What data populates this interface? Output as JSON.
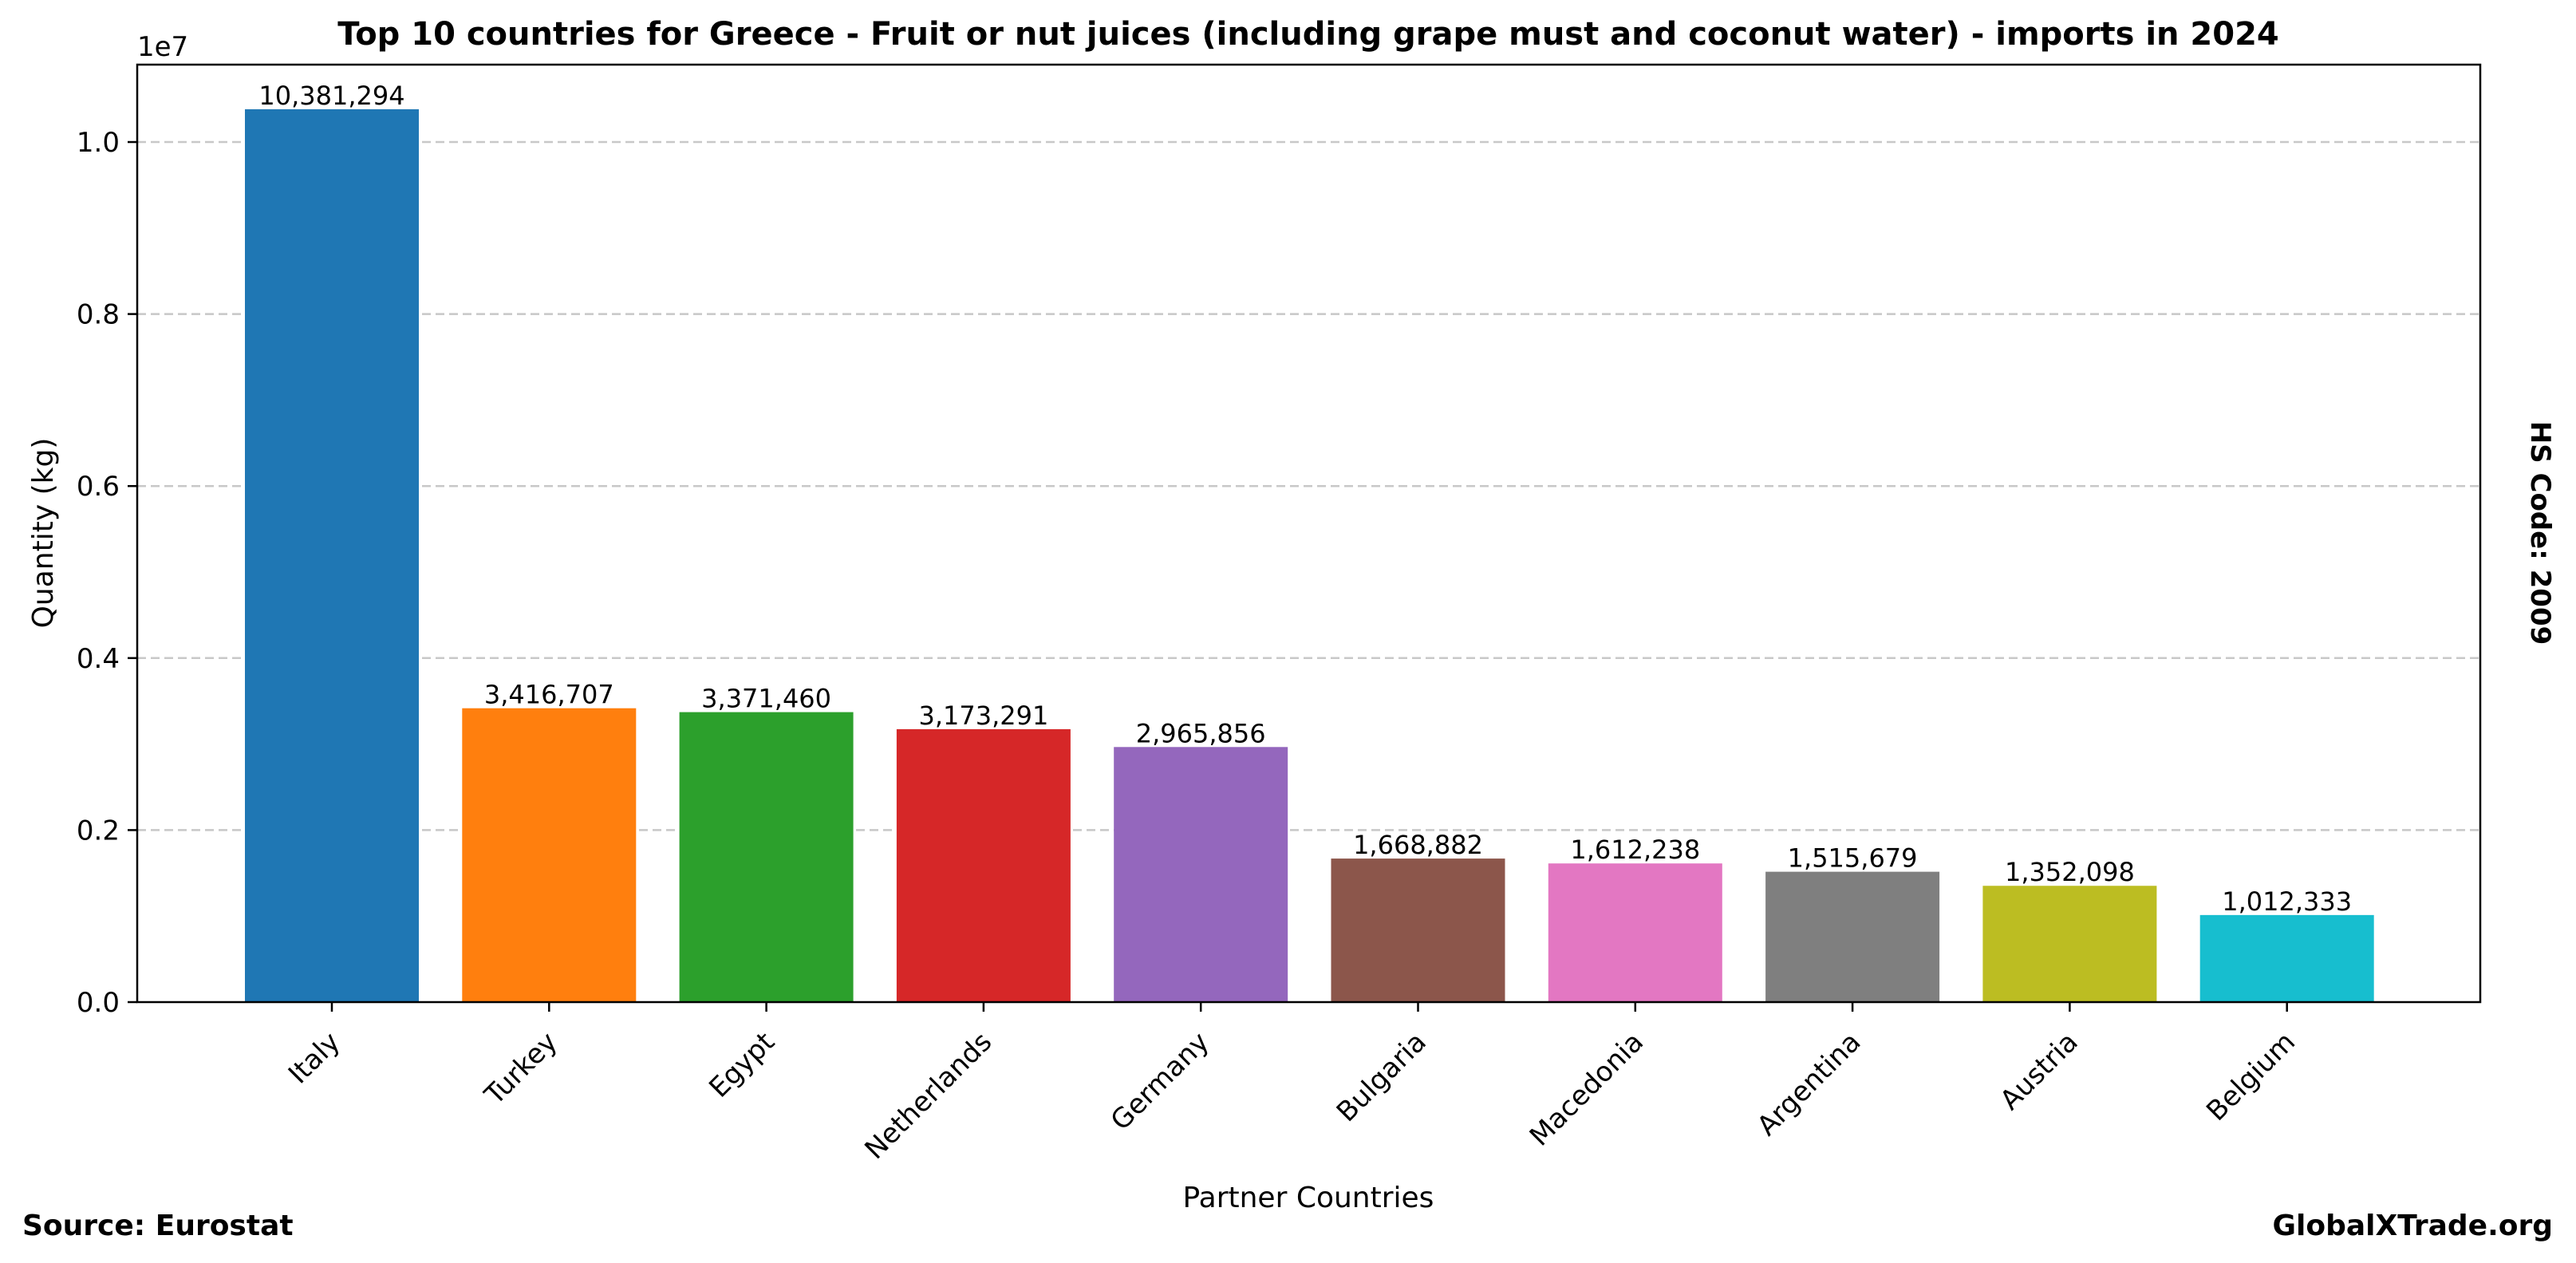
{
  "chart_data": {
    "type": "bar",
    "title": "Top 10 countries for Greece - Fruit or nut juices (including grape must and coconut water) - imports in 2024",
    "xlabel": "Partner Countries",
    "ylabel": "Quantity (kg)",
    "y_offset_label": "1e7",
    "ylim": [
      0,
      10900000
    ],
    "y_ticks": [
      0,
      2000000,
      4000000,
      6000000,
      8000000,
      10000000
    ],
    "y_tick_labels": [
      "0.0",
      "0.2",
      "0.4",
      "0.6",
      "0.8",
      "1.0"
    ],
    "grid": "y-dashed",
    "categories": [
      "Italy",
      "Turkey",
      "Egypt",
      "Netherlands",
      "Germany",
      "Bulgaria",
      "Macedonia",
      "Argentina",
      "Austria",
      "Belgium"
    ],
    "values": [
      10381294,
      3416707,
      3371460,
      3173291,
      2965856,
      1668882,
      1612238,
      1515679,
      1352098,
      1012333
    ],
    "value_labels": [
      "10,381,294",
      "3,416,707",
      "3,371,460",
      "3,173,291",
      "2,965,856",
      "1,668,882",
      "1,612,238",
      "1,515,679",
      "1,352,098",
      "1,012,333"
    ],
    "colors": [
      "#1f77b4",
      "#ff7f0e",
      "#2ca02c",
      "#d62728",
      "#9467bd",
      "#8c564b",
      "#e377c2",
      "#7f7f7f",
      "#bcbd22",
      "#17becf"
    ]
  },
  "side_label": "HS Code: 2009",
  "footer": {
    "source": "Source: Eurostat",
    "brand": "GlobalXTrade.org"
  }
}
